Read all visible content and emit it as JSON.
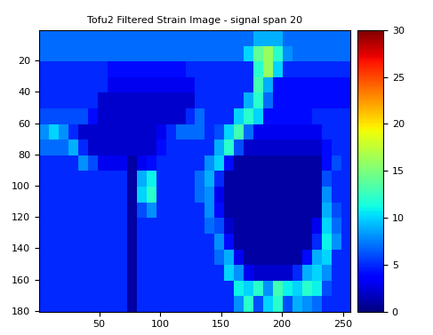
{
  "chart_data": {
    "type": "heatmap",
    "title": "Tofu2 Filtered Strain Image - signal span 20",
    "xlim": [
      0.5,
      256.5
    ],
    "ylim": [
      180.5,
      0.5
    ],
    "xticks": [
      50,
      100,
      150,
      200,
      250
    ],
    "yticks": [
      20,
      40,
      60,
      80,
      100,
      120,
      140,
      160,
      180
    ],
    "colorbar_range": [
      0,
      30
    ],
    "colorbar_ticks": [
      0,
      5,
      10,
      15,
      20,
      25,
      30
    ],
    "cells": [
      [
        7,
        7,
        7,
        7,
        7,
        7,
        7,
        7,
        7,
        7,
        7,
        7,
        7,
        7,
        7,
        7,
        7,
        7,
        7,
        7,
        7,
        7,
        9,
        9,
        9,
        7,
        7,
        7,
        7,
        7,
        7,
        7
      ],
      [
        7,
        7,
        7,
        7,
        7,
        7,
        7,
        7,
        7,
        7,
        7,
        7,
        7,
        7,
        7,
        7,
        7,
        7,
        7,
        7,
        7,
        10,
        14,
        16,
        12,
        8,
        7,
        7,
        7,
        7,
        7,
        7
      ],
      [
        5,
        5,
        5,
        5,
        5,
        5,
        5,
        4,
        4,
        4,
        4,
        4,
        4,
        4,
        4,
        5,
        5,
        5,
        5,
        5,
        5,
        5,
        12,
        16,
        10,
        5,
        5,
        5,
        5,
        5,
        5,
        5
      ],
      [
        5,
        5,
        5,
        5,
        5,
        5,
        5,
        3,
        3,
        3,
        3,
        3,
        3,
        3,
        3,
        3,
        5,
        5,
        5,
        5,
        5,
        5,
        13,
        9,
        4,
        4,
        4,
        4,
        4,
        4,
        4,
        4
      ],
      [
        5,
        5,
        5,
        5,
        5,
        5,
        2,
        2,
        2,
        2,
        2,
        2,
        2,
        2,
        2,
        2,
        5,
        5,
        5,
        5,
        5,
        9,
        12,
        7,
        4,
        4,
        4,
        4,
        4,
        4,
        4,
        4
      ],
      [
        6,
        6,
        6,
        6,
        6,
        4,
        2,
        2,
        2,
        2,
        2,
        2,
        2,
        2,
        2,
        5,
        7,
        5,
        5,
        5,
        10,
        12,
        10,
        4,
        4,
        4,
        4,
        4,
        5,
        5,
        5,
        5
      ],
      [
        8,
        10,
        8,
        5,
        2,
        2,
        2,
        2,
        2,
        2,
        2,
        2,
        3,
        5,
        7,
        7,
        7,
        5,
        6,
        10,
        13,
        7,
        3,
        3,
        3,
        3,
        3,
        3,
        3,
        5,
        5,
        5
      ],
      [
        7,
        7,
        7,
        9,
        5,
        2,
        2,
        2,
        2,
        2,
        2,
        2,
        4,
        5,
        5,
        5,
        5,
        5,
        9,
        12,
        6,
        2,
        2,
        2,
        2,
        2,
        2,
        2,
        2,
        4,
        5,
        5
      ],
      [
        5,
        5,
        5,
        5,
        8,
        6,
        3,
        3,
        3,
        1,
        3,
        4,
        5,
        5,
        5,
        5,
        5,
        8,
        10,
        4,
        1,
        1,
        1,
        1,
        1,
        1,
        1,
        1,
        1,
        4,
        6,
        5
      ],
      [
        5,
        5,
        5,
        5,
        5,
        5,
        5,
        5,
        5,
        1,
        9,
        11,
        5,
        5,
        5,
        5,
        7,
        9,
        5,
        1,
        1,
        1,
        1,
        1,
        1,
        1,
        1,
        1,
        1,
        6,
        5,
        5
      ],
      [
        5,
        5,
        5,
        5,
        5,
        5,
        5,
        5,
        5,
        1,
        10,
        12,
        5,
        5,
        5,
        5,
        7,
        8,
        3,
        1,
        1,
        1,
        1,
        1,
        1,
        1,
        1,
        1,
        1,
        8,
        5,
        5
      ],
      [
        5,
        5,
        5,
        5,
        5,
        5,
        5,
        5,
        5,
        1,
        6,
        8,
        5,
        5,
        5,
        5,
        5,
        8,
        4,
        1,
        1,
        1,
        1,
        1,
        1,
        1,
        1,
        1,
        1,
        9,
        6,
        5
      ],
      [
        5,
        5,
        5,
        5,
        5,
        5,
        5,
        5,
        5,
        1,
        5,
        5,
        5,
        5,
        5,
        5,
        5,
        7,
        6,
        2,
        1,
        1,
        1,
        1,
        1,
        1,
        1,
        1,
        3,
        10,
        7,
        5
      ],
      [
        5,
        5,
        5,
        5,
        5,
        5,
        5,
        5,
        5,
        1,
        5,
        5,
        5,
        5,
        5,
        5,
        5,
        5,
        8,
        4,
        1,
        1,
        1,
        1,
        1,
        1,
        1,
        1,
        5,
        11,
        8,
        5
      ],
      [
        5,
        5,
        5,
        5,
        5,
        5,
        5,
        5,
        5,
        1,
        5,
        5,
        5,
        5,
        5,
        5,
        5,
        5,
        7,
        9,
        3,
        1,
        1,
        1,
        1,
        1,
        1,
        4,
        9,
        10,
        5,
        5
      ],
      [
        5,
        5,
        5,
        5,
        5,
        5,
        5,
        5,
        5,
        1,
        5,
        5,
        5,
        5,
        5,
        5,
        5,
        5,
        5,
        10,
        8,
        3,
        2,
        2,
        2,
        2,
        5,
        9,
        10,
        8,
        5,
        5
      ],
      [
        5,
        5,
        5,
        5,
        5,
        5,
        5,
        5,
        5,
        1,
        5,
        5,
        5,
        5,
        5,
        5,
        5,
        5,
        5,
        5,
        11,
        10,
        12,
        8,
        13,
        11,
        10,
        12,
        11,
        6,
        5,
        5
      ],
      [
        5,
        5,
        5,
        5,
        5,
        5,
        5,
        5,
        5,
        1,
        5,
        5,
        5,
        5,
        5,
        5,
        5,
        5,
        5,
        5,
        8,
        12,
        6,
        10,
        12,
        6,
        9,
        8,
        7,
        5,
        5,
        5
      ]
    ]
  }
}
